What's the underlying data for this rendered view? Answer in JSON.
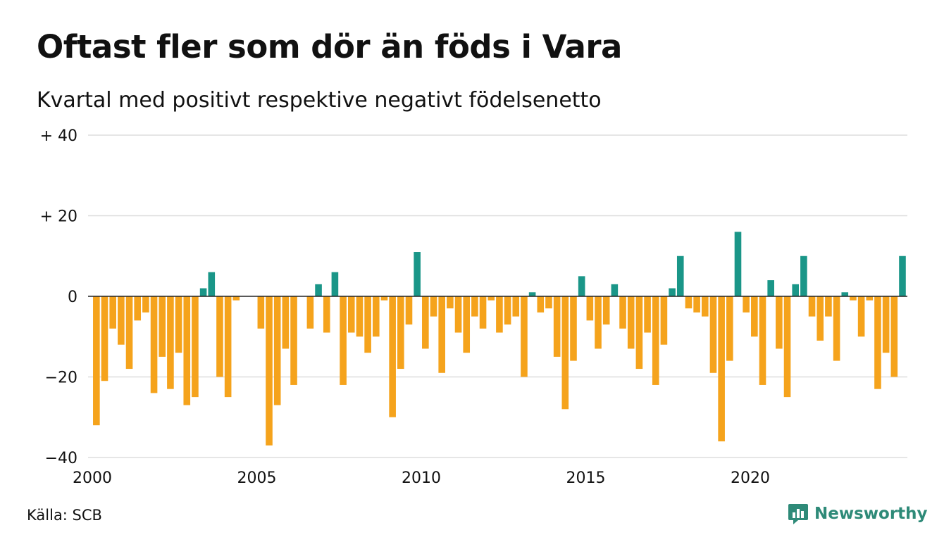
{
  "header": {
    "title": "Oftast fler som dör än föds i Vara",
    "subtitle": "Kvartal med positivt respektive negativt födelsenetto"
  },
  "footer": {
    "source": "Källa: SCB",
    "brand": "Newsworthy",
    "brand_icon": "bar-chart-icon"
  },
  "colors": {
    "positive": "#1a9688",
    "negative": "#f5a31c",
    "grid": "#dddddd",
    "zero_line": "#222222",
    "brand": "#2e8a78"
  },
  "chart_data": {
    "type": "bar",
    "title": "Oftast fler som dör än föds i Vara",
    "subtitle": "Kvartal med positivt respektive negativt födelsenetto",
    "xlabel": "",
    "ylabel": "",
    "ylim": [
      -40,
      40
    ],
    "y_ticks": [
      {
        "value": 40,
        "label": "+ 40"
      },
      {
        "value": 20,
        "label": "+ 20"
      },
      {
        "value": 0,
        "label": "0"
      },
      {
        "value": -20,
        "label": "−20"
      },
      {
        "value": -40,
        "label": "−40"
      }
    ],
    "x_ticks": [
      {
        "value": 2000,
        "label": "2000"
      },
      {
        "value": 2005,
        "label": "2005"
      },
      {
        "value": 2010,
        "label": "2010"
      },
      {
        "value": 2015,
        "label": "2015"
      },
      {
        "value": 2020,
        "label": "2020"
      }
    ],
    "grid": true,
    "legend": "none",
    "start_year": 2000,
    "periods_per_year": 4,
    "values": [
      -32,
      -21,
      -8,
      -12,
      -18,
      -6,
      -4,
      -24,
      -15,
      -23,
      -14,
      -27,
      -25,
      2,
      6,
      -20,
      -25,
      -1,
      0,
      0,
      -8,
      -37,
      -27,
      -13,
      -22,
      0,
      -8,
      3,
      -9,
      6,
      -22,
      -9,
      -10,
      -14,
      -10,
      -1,
      -30,
      -18,
      -7,
      11,
      -13,
      -5,
      -19,
      -3,
      -9,
      -14,
      -5,
      -8,
      -1,
      -9,
      -7,
      -5,
      -20,
      1,
      -4,
      -3,
      -15,
      -28,
      -16,
      5,
      -6,
      -13,
      -7,
      3,
      -8,
      -13,
      -18,
      -9,
      -22,
      -12,
      2,
      10,
      -3,
      -4,
      -5,
      -19,
      -36,
      -16,
      16,
      -4,
      -10,
      -22,
      4,
      -13,
      -25,
      3,
      10,
      -5,
      -11,
      -5,
      -16,
      1,
      -1,
      -10,
      -1,
      -23,
      -14,
      -20,
      10
    ]
  }
}
